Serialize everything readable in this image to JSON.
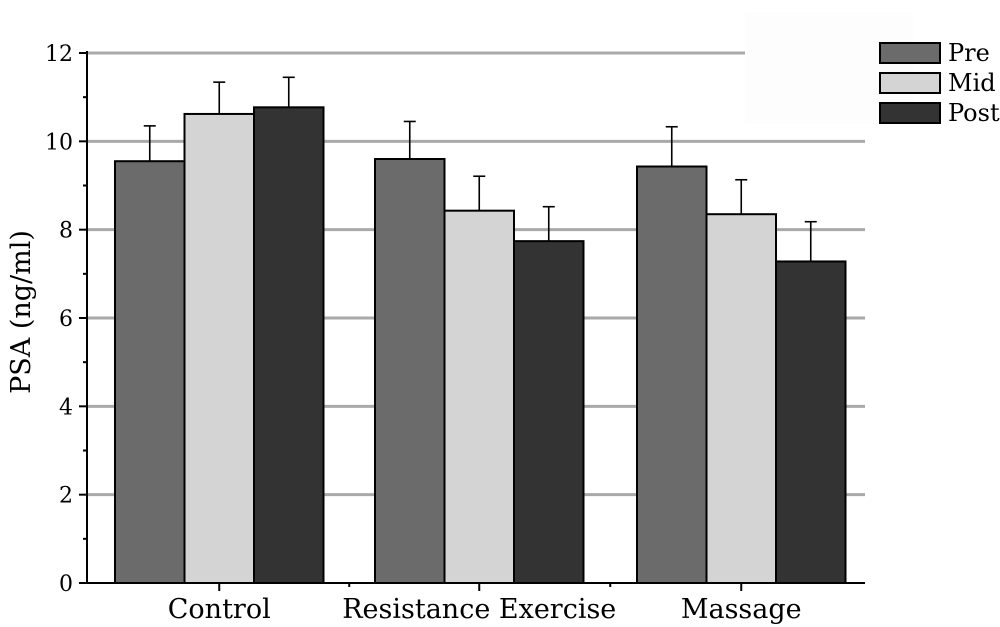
{
  "chart_data": {
    "type": "bar",
    "title": "",
    "xlabel": "",
    "ylabel": "PSA (ng/ml)",
    "ylim": [
      0,
      12
    ],
    "yticks": [
      "0",
      "2",
      "4",
      "6",
      "8",
      "10",
      "12"
    ],
    "grid": "horizontal",
    "legend_position": "top-right",
    "categories": [
      "Control",
      "Resistance Exercise",
      "Massage"
    ],
    "series": [
      {
        "name": "Pre",
        "color": "#6b6b6b",
        "values": [
          9.55,
          9.6,
          9.43
        ],
        "errors": [
          0.8,
          0.85,
          0.9
        ]
      },
      {
        "name": "Mid",
        "color": "#d4d4d4",
        "values": [
          10.62,
          8.43,
          8.35
        ],
        "errors": [
          0.72,
          0.78,
          0.78
        ]
      },
      {
        "name": "Post",
        "color": "#333333",
        "values": [
          10.77,
          7.74,
          7.28
        ],
        "errors": [
          0.68,
          0.78,
          0.9
        ]
      }
    ]
  }
}
